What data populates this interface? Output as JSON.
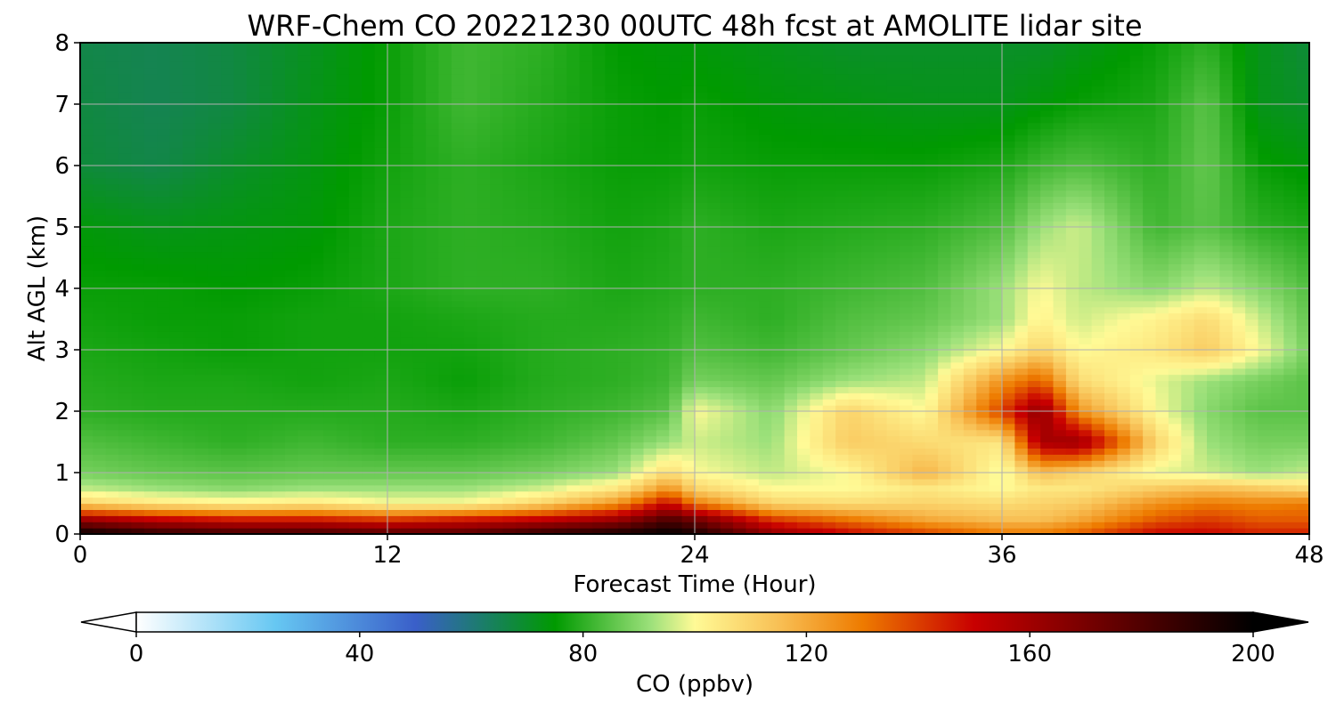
{
  "chart_data": {
    "type": "heatmap",
    "title": "WRF-Chem CO  20221230 00UTC 48h fcst at AMOLITE lidar site",
    "xlabel": "Forecast Time (Hour)",
    "ylabel": "Alt AGL (km)",
    "xlim": [
      0,
      48
    ],
    "ylim": [
      0,
      8
    ],
    "x_ticks": [
      0,
      12,
      24,
      36,
      48
    ],
    "y_ticks": [
      0,
      1,
      2,
      3,
      4,
      5,
      6,
      7,
      8
    ],
    "grid": true,
    "colorbar": {
      "label": "CO  (ppbv)",
      "range": [
        0,
        200
      ],
      "ticks": [
        0,
        40,
        80,
        120,
        160,
        200
      ],
      "extend": "both",
      "orientation": "horizontal",
      "placement": "bottom",
      "stops": [
        {
          "value": 0,
          "color": "#ffffff"
        },
        {
          "value": 25,
          "color": "#66c7f2"
        },
        {
          "value": 50,
          "color": "#3a5fc9"
        },
        {
          "value": 62,
          "color": "#1b7d6a"
        },
        {
          "value": 75,
          "color": "#009a00"
        },
        {
          "value": 92,
          "color": "#9be07a"
        },
        {
          "value": 100,
          "color": "#fffa96"
        },
        {
          "value": 115,
          "color": "#f8c055"
        },
        {
          "value": 130,
          "color": "#ee7b00"
        },
        {
          "value": 150,
          "color": "#c80000"
        },
        {
          "value": 175,
          "color": "#640000"
        },
        {
          "value": 200,
          "color": "#000000"
        }
      ]
    },
    "altitudes_km": [
      0,
      0.25,
      0.5,
      0.75,
      1,
      1.5,
      2,
      2.5,
      3,
      3.5,
      4,
      5,
      6,
      7,
      8
    ],
    "hours": [
      0,
      3,
      6,
      9,
      12,
      15,
      18,
      21,
      23,
      24,
      27,
      30,
      33,
      36,
      37.5,
      39,
      42,
      44,
      46,
      48
    ],
    "values_ppbv": [
      [
        200,
        190,
        185,
        185,
        180,
        180,
        190,
        195,
        200,
        195,
        165,
        150,
        140,
        130,
        130,
        135,
        150,
        150,
        145,
        145
      ],
      [
        160,
        150,
        145,
        145,
        140,
        145,
        150,
        160,
        180,
        170,
        140,
        130,
        120,
        115,
        115,
        120,
        135,
        140,
        135,
        135
      ],
      [
        110,
        105,
        102,
        105,
        100,
        100,
        110,
        125,
        150,
        130,
        110,
        108,
        110,
        108,
        110,
        112,
        125,
        130,
        128,
        130
      ],
      [
        95,
        92,
        90,
        92,
        92,
        92,
        96,
        105,
        125,
        110,
        100,
        100,
        105,
        100,
        105,
        105,
        112,
        115,
        112,
        108
      ],
      [
        88,
        86,
        85,
        86,
        86,
        86,
        88,
        92,
        108,
        100,
        95,
        100,
        118,
        98,
        115,
        110,
        98,
        96,
        92,
        95
      ],
      [
        84,
        82,
        80,
        82,
        80,
        80,
        82,
        86,
        92,
        96,
        92,
        112,
        108,
        105,
        158,
        162,
        110,
        92,
        88,
        88
      ],
      [
        80,
        79,
        79,
        79,
        79,
        78,
        80,
        82,
        85,
        100,
        90,
        110,
        100,
        140,
        165,
        125,
        100,
        90,
        85,
        85
      ],
      [
        79,
        78,
        78,
        77,
        78,
        76,
        79,
        80,
        82,
        88,
        86,
        92,
        95,
        125,
        135,
        108,
        98,
        92,
        88,
        85
      ],
      [
        78,
        77,
        76,
        77,
        77,
        77,
        79,
        80,
        81,
        84,
        82,
        86,
        90,
        100,
        110,
        100,
        105,
        112,
        100,
        88
      ],
      [
        77,
        76,
        76,
        77,
        77,
        78,
        79,
        79,
        80,
        82,
        80,
        84,
        86,
        92,
        102,
        96,
        102,
        108,
        96,
        86
      ],
      [
        76,
        76,
        75,
        76,
        78,
        80,
        80,
        78,
        79,
        80,
        80,
        82,
        84,
        92,
        100,
        95,
        90,
        95,
        90,
        84
      ],
      [
        74,
        72,
        73,
        74,
        78,
        80,
        79,
        77,
        78,
        80,
        78,
        79,
        80,
        84,
        92,
        96,
        82,
        85,
        80,
        78
      ],
      [
        68,
        66,
        70,
        73,
        77,
        80,
        78,
        76,
        76,
        77,
        76,
        76,
        76,
        78,
        82,
        84,
        80,
        86,
        76,
        74
      ],
      [
        67,
        65,
        67,
        72,
        76,
        82,
        79,
        76,
        75,
        76,
        74,
        73,
        72,
        72,
        74,
        76,
        78,
        85,
        72,
        70
      ],
      [
        66,
        65,
        67,
        71,
        76,
        82,
        80,
        75,
        74,
        74,
        72,
        70,
        70,
        70,
        70,
        72,
        76,
        80,
        72,
        68
      ]
    ]
  }
}
